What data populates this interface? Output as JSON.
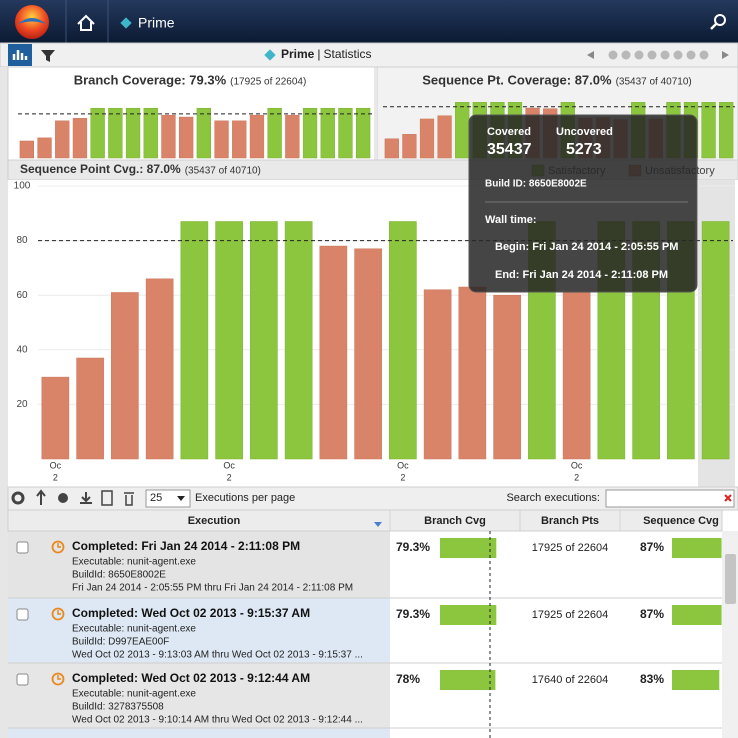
{
  "header": {
    "title": "Prime"
  },
  "toolbar": {
    "project": "Prime",
    "separator": "|",
    "view": "Statistics"
  },
  "chart_data": [
    {
      "type": "bar",
      "title": "Branch Coverage: 79.3%",
      "subtitle": "(17925 of 22604)",
      "values": [
        27,
        32,
        59,
        63,
        79,
        79,
        79,
        79,
        68,
        65,
        79,
        59,
        59,
        68,
        79,
        68,
        79,
        79,
        79,
        79
      ],
      "ylim": [
        0,
        100
      ],
      "threshold": 70,
      "colors": [
        "#8cc63e",
        "#d98468"
      ]
    },
    {
      "type": "bar",
      "title": "Sequence Pt. Coverage: 87.0%",
      "subtitle": "(35437 of 40710)",
      "values": [
        30,
        37,
        61,
        66,
        87,
        87,
        87,
        87,
        78,
        77,
        87,
        62,
        63,
        60,
        87,
        61,
        87,
        87,
        87,
        87
      ],
      "ylim": [
        0,
        100
      ],
      "threshold": 80,
      "colors": [
        "#8cc63e",
        "#d98468"
      ]
    },
    {
      "type": "bar",
      "title": "Sequence Point Cvg.: 87.0%",
      "subtitle": "(35437 of 40710)",
      "categories": [
        [
          "Oc",
          "2"
        ],
        null,
        null,
        null,
        null,
        [
          "Oc",
          "2"
        ],
        null,
        null,
        null,
        null,
        [
          "Oc",
          "2"
        ],
        null,
        null,
        null,
        null,
        [
          "Oc",
          "2"
        ],
        null,
        null,
        null,
        null
      ],
      "values": [
        30,
        37,
        61,
        66,
        87,
        87,
        87,
        87,
        78,
        77,
        87,
        62,
        63,
        60,
        87,
        61,
        87,
        87,
        87,
        87
      ],
      "ylim": [
        0,
        100
      ],
      "yticks": [
        20,
        40,
        60,
        80,
        100
      ],
      "grid": true,
      "threshold": 80,
      "legend": [
        {
          "name": "Satisfactory",
          "color": "#8cc63e"
        },
        {
          "name": "Unsatisfactory",
          "color": "#d98468"
        }
      ]
    }
  ],
  "tooltip": {
    "covered_label": "Covered",
    "covered": "35437",
    "uncovered_label": "Uncovered",
    "uncovered": "5273",
    "build": "Build ID: 8650E8002E",
    "wall_time": "Wall time:",
    "begin": "Begin: Fri Jan 24 2014 - 2:05:55 PM",
    "end": "End: Fri Jan 24 2014 - 2:11:08 PM"
  },
  "table_toolbar": {
    "page_size": "25",
    "page_size_label": "Executions per page",
    "search_label": "Search executions:"
  },
  "table": {
    "columns": [
      "Execution",
      "Branch Cvg",
      "Branch Pts",
      "Sequence Cvg"
    ],
    "rows": [
      {
        "title": "Completed: Fri Jan 24 2014 - 2:11:08 PM",
        "executable": "Executable: nunit-agent.exe",
        "build": "BuildId: 8650E8002E",
        "span": "Fri Jan 24 2014 - 2:05:55 PM thru Fri Jan 24 2014 - 2:11:08 PM",
        "branch_cvg": {
          "value": 79.3,
          "label": "79.3%"
        },
        "branch_pts": "17925 of 22604",
        "sequence_cvg": {
          "value": 87,
          "label": "87%"
        }
      },
      {
        "title": "Completed: Wed Oct 02 2013 - 9:15:37 AM",
        "executable": "Executable: nunit-agent.exe",
        "build": "BuildId: D997EAE00F",
        "span": "Wed Oct 02 2013 - 9:13:03 AM thru Wed Oct 02 2013 - 9:15:37 ...",
        "branch_cvg": {
          "value": 79.3,
          "label": "79.3%"
        },
        "branch_pts": "17925 of 22604",
        "sequence_cvg": {
          "value": 87,
          "label": "87%"
        }
      },
      {
        "title": "Completed: Wed Oct 02 2013 - 9:12:44 AM",
        "executable": "Executable: nunit-agent.exe",
        "build": "BuildId: 3278375508",
        "span": "Wed Oct 02 2013 - 9:10:14 AM thru Wed Oct 02 2013 - 9:12:44 ...",
        "branch_cvg": {
          "value": 78,
          "label": "78%"
        },
        "branch_pts": "17640 of 22604",
        "sequence_cvg": {
          "value": 83,
          "label": "83%"
        }
      }
    ]
  }
}
